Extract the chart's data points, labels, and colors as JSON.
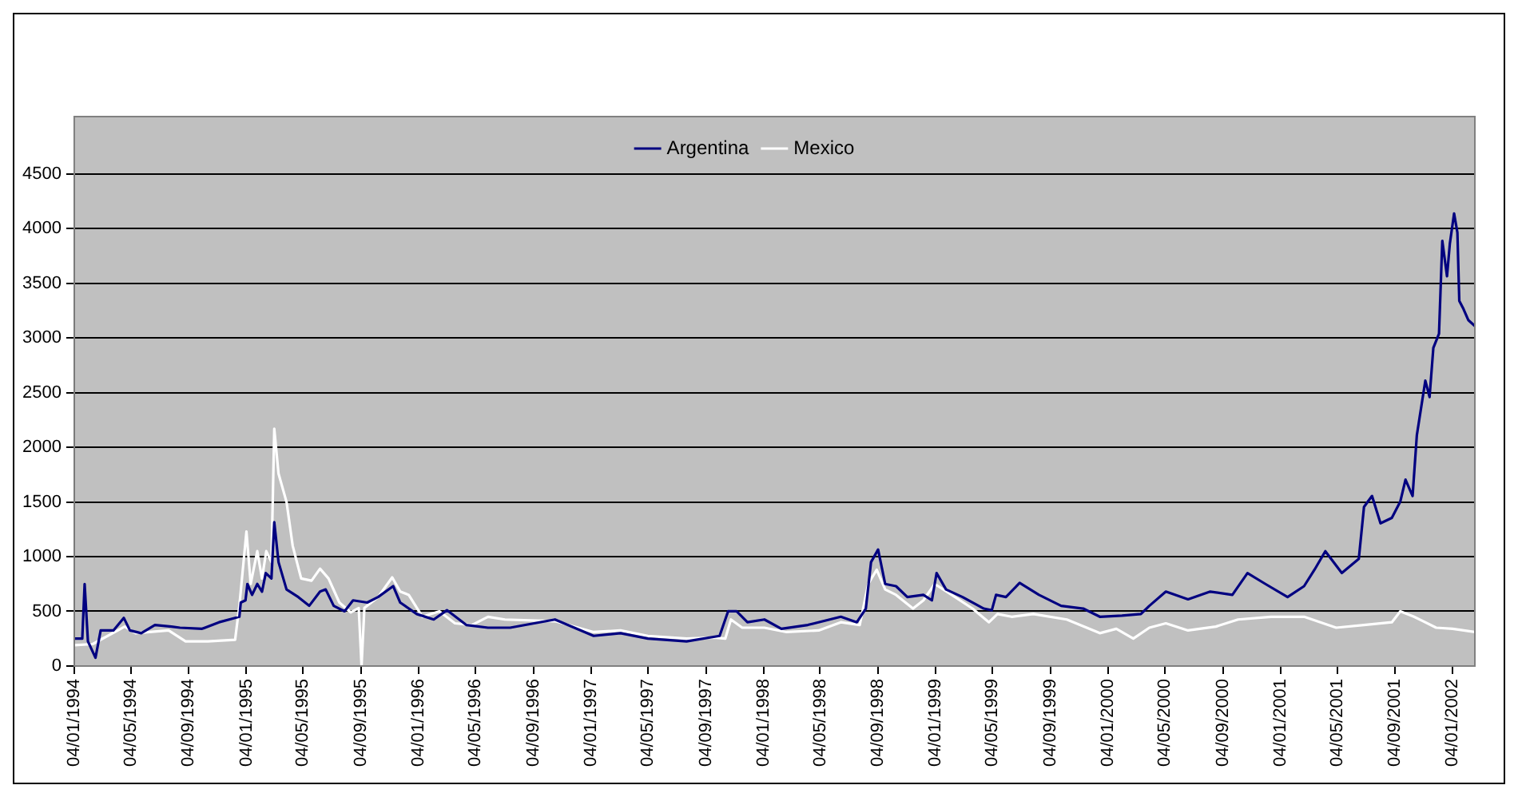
{
  "chart_data": {
    "type": "line",
    "legend": "top",
    "grid": "y",
    "line_style": "solid",
    "xlim": [
      "1994-01-04",
      "2002-02-20"
    ],
    "xticks": [
      {
        "value": "1994-01-04",
        "label": "04/01/1994"
      },
      {
        "value": "1994-05-04",
        "label": "04/05/1994"
      },
      {
        "value": "1994-09-04",
        "label": "04/09/1994"
      },
      {
        "value": "1995-01-04",
        "label": "04/01/1995"
      },
      {
        "value": "1995-05-04",
        "label": "04/05/1995"
      },
      {
        "value": "1995-09-04",
        "label": "04/09/1995"
      },
      {
        "value": "1996-01-04",
        "label": "04/01/1996"
      },
      {
        "value": "1996-05-04",
        "label": "04/05/1996"
      },
      {
        "value": "1996-09-04",
        "label": "04/09/1996"
      },
      {
        "value": "1997-01-04",
        "label": "04/01/1997"
      },
      {
        "value": "1997-05-04",
        "label": "04/05/1997"
      },
      {
        "value": "1997-09-04",
        "label": "04/09/1997"
      },
      {
        "value": "1998-01-04",
        "label": "04/01/1998"
      },
      {
        "value": "1998-05-04",
        "label": "04/05/1998"
      },
      {
        "value": "1998-09-04",
        "label": "04/09/1998"
      },
      {
        "value": "1999-01-04",
        "label": "04/01/1999"
      },
      {
        "value": "1999-05-04",
        "label": "04/05/1999"
      },
      {
        "value": "1999-09-04",
        "label": "04/09/1999"
      },
      {
        "value": "2000-01-04",
        "label": "04/01/2000"
      },
      {
        "value": "2000-05-04",
        "label": "04/05/2000"
      },
      {
        "value": "2000-09-04",
        "label": "04/09/2000"
      },
      {
        "value": "2001-01-04",
        "label": "04/01/2001"
      },
      {
        "value": "2001-05-04",
        "label": "04/05/2001"
      },
      {
        "value": "2001-09-04",
        "label": "04/09/2001"
      },
      {
        "value": "2002-01-04",
        "label": "04/01/2002"
      }
    ],
    "ylim": [
      0,
      4500
    ],
    "yticks": [
      0,
      500,
      1000,
      1500,
      2000,
      2500,
      3000,
      3500,
      4000,
      4500
    ],
    "series": [
      {
        "name": "Argentina",
        "color": "#000080",
        "x": [
          "1994-01-05",
          "1994-01-21",
          "1994-01-26",
          "1994-02-02",
          "1994-02-18",
          "1994-03-01",
          "1994-03-28",
          "1994-04-19",
          "1994-05-02",
          "1994-05-26",
          "1994-06-24",
          "1994-07-29",
          "1994-08-16",
          "1994-10-02",
          "1994-11-07",
          "1994-12-11",
          "1994-12-20",
          "1994-12-23",
          "1995-01-02",
          "1995-01-06",
          "1995-01-16",
          "1995-01-27",
          "1995-02-06",
          "1995-02-14",
          "1995-02-26",
          "1995-03-04",
          "1995-03-13",
          "1995-03-30",
          "1995-04-24",
          "1995-05-17",
          "1995-06-09",
          "1995-06-21",
          "1995-07-08",
          "1995-07-31",
          "1995-08-18",
          "1995-09-17",
          "1995-10-10",
          "1995-11-11",
          "1995-11-26",
          "1995-12-31",
          "1996-02-05",
          "1996-03-04",
          "1996-04-14",
          "1996-05-30",
          "1996-07-16",
          "1996-10-19",
          "1997-01-09",
          "1997-03-07",
          "1997-05-04",
          "1997-07-25",
          "1997-10-03",
          "1997-10-21",
          "1997-11-08",
          "1997-12-01",
          "1998-01-06",
          "1998-02-11",
          "1998-04-08",
          "1998-06-17",
          "1998-07-21",
          "1998-08-09",
          "1998-08-20",
          "1998-09-04",
          "1998-09-19",
          "1998-10-12",
          "1998-11-05",
          "1998-12-09",
          "1998-12-27",
          "1999-01-06",
          "1999-01-26",
          "1999-03-02",
          "1999-04-16",
          "1999-05-03",
          "1999-05-12",
          "1999-06-02",
          "1999-07-01",
          "1999-08-11",
          "1999-09-27",
          "1999-11-13",
          "1999-12-18",
          "2000-02-03",
          "2000-03-14",
          "2000-04-01",
          "2000-05-06",
          "2000-06-22",
          "2000-08-08",
          "2000-09-24",
          "2000-10-26",
          "2000-12-03",
          "2001-01-19",
          "2001-02-23",
          "2001-03-17",
          "2001-04-09",
          "2001-05-14",
          "2001-06-19",
          "2001-06-30",
          "2001-07-17",
          "2001-08-04",
          "2001-08-28",
          "2001-09-15",
          "2001-09-26",
          "2001-10-11",
          "2001-10-20",
          "2001-11-07",
          "2001-11-16",
          "2001-11-24",
          "2001-12-06",
          "2001-12-13",
          "2001-12-23",
          "2001-12-29",
          "2002-01-07",
          "2002-01-14",
          "2002-01-18",
          "2002-01-27",
          "2002-02-06",
          "2002-02-20"
        ],
        "values": [
          250,
          250,
          750,
          225,
          75,
          325,
          325,
          440,
          325,
          300,
          375,
          360,
          350,
          340,
          400,
          440,
          450,
          580,
          600,
          750,
          650,
          750,
          680,
          850,
          800,
          1315,
          950,
          700,
          630,
          550,
          680,
          700,
          550,
          500,
          600,
          580,
          630,
          730,
          580,
          475,
          425,
          510,
          375,
          350,
          350,
          425,
          275,
          300,
          250,
          225,
          275,
          500,
          500,
          400,
          425,
          340,
          375,
          450,
          400,
          525,
          950,
          1065,
          750,
          730,
          630,
          650,
          600,
          850,
          700,
          630,
          525,
          510,
          650,
          630,
          760,
          650,
          550,
          525,
          450,
          460,
          475,
          550,
          680,
          610,
          680,
          650,
          850,
          750,
          630,
          730,
          880,
          1050,
          850,
          980,
          1455,
          1555,
          1305,
          1355,
          1505,
          1705,
          1555,
          2110,
          2610,
          2460,
          2910,
          3040,
          3890,
          3565,
          3865,
          4140,
          3965,
          3340,
          3265,
          3165,
          3110
        ]
      },
      {
        "name": "Mexico",
        "color": "#ffffff",
        "x": [
          "1994-01-05",
          "1994-02-12",
          "1994-04-21",
          "1994-05-14",
          "1994-07-23",
          "1994-08-28",
          "1994-10-14",
          "1994-12-11",
          "1994-12-20",
          "1995-01-04",
          "1995-01-13",
          "1995-01-27",
          "1995-02-06",
          "1995-02-15",
          "1995-02-26",
          "1995-03-04",
          "1995-03-13",
          "1995-03-30",
          "1995-04-12",
          "1995-04-30",
          "1995-05-22",
          "1995-06-09",
          "1995-06-27",
          "1995-07-20",
          "1995-08-13",
          "1995-08-30",
          "1995-09-05",
          "1995-09-11",
          "1995-10-10",
          "1995-11-09",
          "1995-11-26",
          "1995-12-14",
          "1996-01-12",
          "1996-02-17",
          "1996-03-21",
          "1996-04-26",
          "1996-05-30",
          "1996-07-05",
          "1996-10-19",
          "1997-01-09",
          "1997-03-07",
          "1997-05-04",
          "1997-07-25",
          "1997-09-22",
          "1997-10-15",
          "1997-10-27",
          "1997-11-20",
          "1998-01-06",
          "1998-02-22",
          "1998-05-01",
          "1998-06-17",
          "1998-07-27",
          "1998-08-14",
          "1998-09-01",
          "1998-09-19",
          "1998-10-12",
          "1998-11-17",
          "1998-12-09",
          "1999-01-02",
          "1999-02-07",
          "1999-03-23",
          "1999-04-27",
          "1999-05-15",
          "1999-06-14",
          "1999-07-30",
          "1999-10-09",
          "1999-12-18",
          "2000-01-22",
          "2000-02-27",
          "2000-04-01",
          "2000-05-06",
          "2000-06-22",
          "2000-08-20",
          "2000-10-06",
          "2000-12-15",
          "2001-02-23",
          "2001-05-02",
          "2001-06-30",
          "2001-08-28",
          "2001-09-15",
          "2001-10-14",
          "2001-11-30",
          "2002-01-04",
          "2002-02-20"
        ],
        "values": [
          190,
          200,
          360,
          300,
          325,
          225,
          225,
          240,
          550,
          1230,
          750,
          1050,
          800,
          1050,
          950,
          2170,
          1760,
          1500,
          1100,
          800,
          780,
          890,
          800,
          580,
          490,
          530,
          0,
          530,
          630,
          810,
          680,
          650,
          450,
          500,
          390,
          375,
          450,
          425,
          410,
          310,
          325,
          275,
          250,
          260,
          250,
          425,
          350,
          350,
          310,
          325,
          400,
          375,
          750,
          880,
          700,
          650,
          525,
          600,
          750,
          650,
          525,
          400,
          475,
          450,
          475,
          425,
          300,
          340,
          250,
          350,
          390,
          325,
          360,
          425,
          450,
          450,
          350,
          375,
          400,
          500,
          450,
          350,
          340,
          310
        ]
      }
    ]
  }
}
